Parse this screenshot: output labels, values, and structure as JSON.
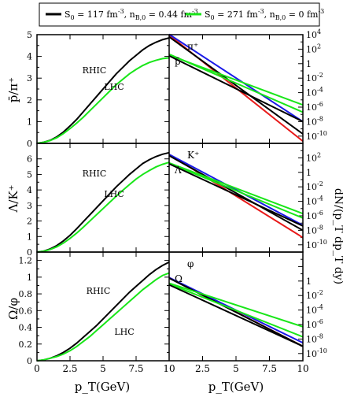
{
  "legend": {
    "entries": [
      {
        "color": "#000000",
        "prefix": "S",
        "sub": "0",
        "text": " = 117 fm",
        "sup": "-3",
        "text2": ", n",
        "sub2": "B,0",
        "text3": " = 0.44 fm",
        "sup2": "-3"
      },
      {
        "color": "#19e619",
        "prefix": "S",
        "sub": "0",
        "text": " = 271 fm",
        "sup": "-3",
        "text2": ", n",
        "sub2": "B,0",
        "text3": " = 0 fm",
        "sup2": "-3"
      }
    ]
  },
  "colors": {
    "black": "#000000",
    "red": "#e81919",
    "blue": "#1a1ae8",
    "green": "#19e619"
  },
  "chart_data": [
    {
      "type": "line",
      "panel": "ratio",
      "ylabel": "p̄/π⁺",
      "xlim": [
        0,
        10
      ],
      "ylim": [
        0,
        5
      ],
      "yticks": [
        0,
        1,
        2,
        3,
        4,
        5
      ],
      "annotations": [
        "RHIC",
        "LHC"
      ],
      "series": [
        {
          "name": "RHIC",
          "color": "black",
          "x": [
            0,
            0.5,
            1,
            1.5,
            2,
            2.5,
            3,
            3.5,
            4,
            4.5,
            5,
            5.5,
            6,
            6.5,
            7,
            7.5,
            8,
            8.5,
            9,
            9.5,
            10
          ],
          "values": [
            0,
            0.05,
            0.14,
            0.3,
            0.52,
            0.8,
            1.1,
            1.45,
            1.8,
            2.15,
            2.5,
            2.85,
            3.2,
            3.5,
            3.8,
            4.05,
            4.3,
            4.5,
            4.65,
            4.77,
            4.85
          ]
        },
        {
          "name": "LHC",
          "color": "green",
          "x": [
            0,
            0.5,
            1,
            1.5,
            2,
            2.5,
            3,
            3.5,
            4,
            4.5,
            5,
            5.5,
            6,
            6.5,
            7,
            7.5,
            8,
            8.5,
            9,
            9.5,
            10
          ],
          "values": [
            0,
            0.05,
            0.13,
            0.26,
            0.45,
            0.68,
            0.93,
            1.2,
            1.5,
            1.8,
            2.1,
            2.4,
            2.7,
            2.95,
            3.2,
            3.4,
            3.58,
            3.72,
            3.82,
            3.9,
            3.93
          ]
        }
      ]
    },
    {
      "type": "line",
      "panel": "spectrum",
      "ylabel": "dN/(p_T dp_T dy)",
      "yscale": "log",
      "xlim": [
        0,
        10
      ],
      "ylim": [
        1e-11,
        10000.0
      ],
      "ytick_labels": [
        "10^4",
        "10^2",
        "1",
        "10^-2",
        "10^-4",
        "10^-6",
        "10^-8",
        "10^-10"
      ],
      "annotations": [
        "π⁺",
        "p̄"
      ],
      "series": [
        {
          "color": "red",
          "x": [
            0,
            10
          ],
          "values": [
            9000,
            2e-11
          ]
        },
        {
          "color": "blue",
          "x": [
            0,
            10
          ],
          "values": [
            11000,
            1e-08
          ]
        },
        {
          "color": "black",
          "x": [
            0,
            10
          ],
          "values": [
            5000,
            2e-10
          ]
        },
        {
          "color": "green",
          "x": [
            0,
            10
          ],
          "values": [
            15,
            2e-06
          ]
        },
        {
          "color": "green",
          "x": [
            0,
            10
          ],
          "values": [
            20,
            2e-07
          ]
        },
        {
          "color": "black",
          "x": [
            0,
            10
          ],
          "values": [
            12,
            1e-08
          ]
        }
      ]
    },
    {
      "type": "line",
      "panel": "ratio",
      "ylabel": "Λ/K⁺",
      "xlim": [
        0,
        10
      ],
      "ylim": [
        0,
        7
      ],
      "yticks": [
        0,
        1,
        2,
        3,
        4,
        5,
        6
      ],
      "annotations": [
        "RHIC",
        "LHC"
      ],
      "series": [
        {
          "name": "RHIC",
          "color": "black",
          "x": [
            0,
            0.5,
            1,
            1.5,
            2,
            2.5,
            3,
            3.5,
            4,
            4.5,
            5,
            5.5,
            6,
            6.5,
            7,
            7.5,
            8,
            8.5,
            9,
            9.5,
            10
          ],
          "values": [
            0,
            0.06,
            0.2,
            0.42,
            0.72,
            1.08,
            1.5,
            1.95,
            2.4,
            2.85,
            3.3,
            3.75,
            4.2,
            4.6,
            5,
            5.35,
            5.7,
            5.95,
            6.15,
            6.3,
            6.4
          ]
        },
        {
          "name": "LHC",
          "color": "green",
          "x": [
            0,
            0.5,
            1,
            1.5,
            2,
            2.5,
            3,
            3.5,
            4,
            4.5,
            5,
            5.5,
            6,
            6.5,
            7,
            7.5,
            8,
            8.5,
            9,
            9.5,
            10
          ],
          "values": [
            0,
            0.05,
            0.16,
            0.34,
            0.58,
            0.88,
            1.22,
            1.6,
            2,
            2.4,
            2.8,
            3.2,
            3.6,
            3.98,
            4.35,
            4.7,
            5,
            5.25,
            5.48,
            5.65,
            5.78
          ]
        }
      ]
    },
    {
      "type": "line",
      "panel": "spectrum",
      "ylabel": "dN/(p_T dp_T dy)",
      "yscale": "log",
      "xlim": [
        0,
        10
      ],
      "ylim": [
        1e-11,
        10000.0
      ],
      "ytick_labels": [
        "10^2",
        "1",
        "10^-2",
        "10^-4",
        "10^-6",
        "10^-8",
        "10^-10"
      ],
      "annotations": [
        "K⁺",
        "Λ"
      ],
      "series": [
        {
          "color": "red",
          "x": [
            0,
            10
          ],
          "values": [
            300,
            1e-09
          ]
        },
        {
          "color": "blue",
          "x": [
            0,
            10
          ],
          "values": [
            300,
            5e-08
          ]
        },
        {
          "color": "black",
          "x": [
            0,
            10
          ],
          "values": [
            200,
            1e-08
          ]
        },
        {
          "color": "green",
          "x": [
            0,
            10
          ],
          "values": [
            20,
            2e-06
          ]
        },
        {
          "color": "green",
          "x": [
            0,
            10
          ],
          "values": [
            18,
            5e-07
          ]
        },
        {
          "color": "black",
          "x": [
            0,
            10
          ],
          "values": [
            15,
            4e-08
          ]
        }
      ]
    },
    {
      "type": "line",
      "panel": "ratio",
      "ylabel": "Ω/φ",
      "xlabel": "p_T(GeV)",
      "xlim": [
        0,
        10
      ],
      "ylim": [
        0,
        1.3
      ],
      "xticks": [
        0,
        2.5,
        5,
        7.5,
        10
      ],
      "xtick_labels": [
        "0",
        "2.5",
        "5",
        "7.5",
        "10"
      ],
      "yticks": [
        0,
        0.2,
        0.4,
        0.6,
        0.8,
        1.0,
        1.2
      ],
      "ytick_labels": [
        "0",
        "0.2",
        "0.4",
        "0.6",
        "0.8",
        "1",
        "1.2"
      ],
      "annotations": [
        "RHIC",
        "LHC"
      ],
      "series": [
        {
          "name": "RHIC",
          "color": "black",
          "x": [
            0,
            0.5,
            1,
            1.5,
            2,
            2.5,
            3,
            3.5,
            4,
            4.5,
            5,
            5.5,
            6,
            6.5,
            7,
            7.5,
            8,
            8.5,
            9,
            9.5,
            10
          ],
          "values": [
            0,
            0.01,
            0.03,
            0.06,
            0.1,
            0.15,
            0.21,
            0.28,
            0.35,
            0.42,
            0.5,
            0.58,
            0.66,
            0.74,
            0.82,
            0.89,
            0.96,
            1.03,
            1.09,
            1.14,
            1.18
          ]
        },
        {
          "name": "LHC",
          "color": "green",
          "x": [
            0,
            0.5,
            1,
            1.5,
            2,
            2.5,
            3,
            3.5,
            4,
            4.5,
            5,
            5.5,
            6,
            6.5,
            7,
            7.5,
            8,
            8.5,
            9,
            9.5,
            10
          ],
          "values": [
            0,
            0.01,
            0.03,
            0.05,
            0.08,
            0.12,
            0.17,
            0.23,
            0.29,
            0.36,
            0.43,
            0.5,
            0.57,
            0.64,
            0.71,
            0.78,
            0.85,
            0.91,
            0.97,
            1.02,
            1.05
          ]
        }
      ]
    },
    {
      "type": "line",
      "panel": "spectrum",
      "xlabel": "p_T(GeV)",
      "yscale": "log",
      "xlim": [
        0,
        10
      ],
      "ylim": [
        1e-11,
        10000.0
      ],
      "xticks": [
        2.5,
        5,
        7.5,
        10
      ],
      "xtick_labels": [
        "2.5",
        "5",
        "7.5",
        "10"
      ],
      "ytick_labels": [
        "1",
        "10^-2",
        "10^-4",
        "10^-6",
        "10^-8",
        "10^-10"
      ],
      "annotations": [
        "φ",
        "Ω"
      ],
      "series": [
        {
          "color": "red",
          "x": [
            0,
            10
          ],
          "values": [
            3,
            1e-09
          ]
        },
        {
          "color": "blue",
          "x": [
            0,
            10
          ],
          "values": [
            3,
            3e-09
          ]
        },
        {
          "color": "black",
          "x": [
            0,
            10
          ],
          "values": [
            2.5,
            1e-09
          ]
        },
        {
          "color": "green",
          "x": [
            0,
            10
          ],
          "values": [
            0.5,
            5e-07
          ]
        },
        {
          "color": "green",
          "x": [
            0,
            10
          ],
          "values": [
            0.4,
            2e-08
          ]
        },
        {
          "color": "black",
          "x": [
            0,
            10
          ],
          "values": [
            0.3,
            1e-09
          ]
        }
      ]
    }
  ]
}
